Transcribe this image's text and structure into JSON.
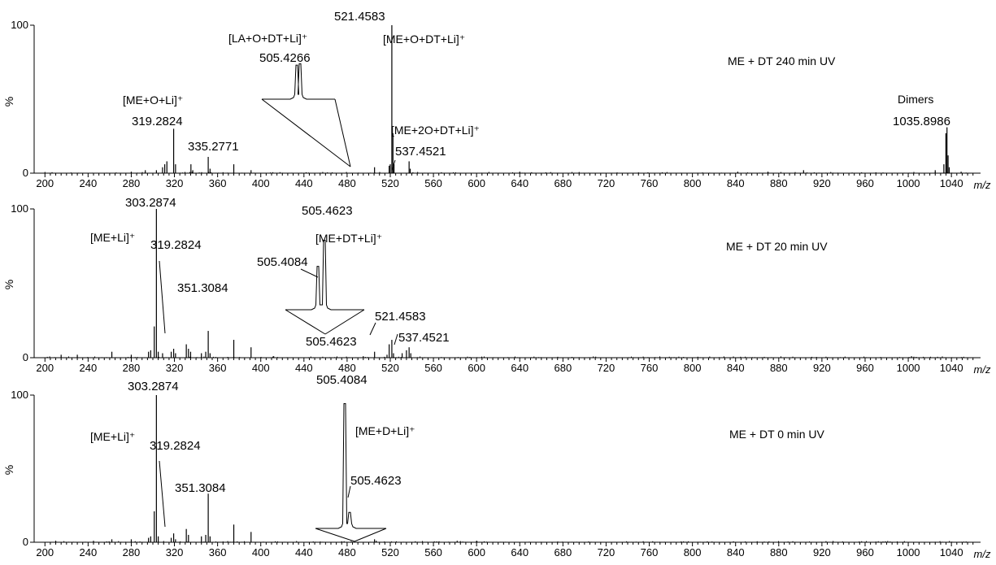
{
  "chart_data": [
    {
      "type": "line",
      "title": "ME + DT 240 min UV",
      "xlabel": "m/z",
      "ylabel": "%",
      "xlim": [
        190,
        1067
      ],
      "ylim": [
        0,
        100
      ],
      "x_ticks": [
        "200",
        "240",
        "280",
        "320",
        "360",
        "400",
        "440",
        "480",
        "520",
        "560",
        "600",
        "640",
        "680",
        "720",
        "760",
        "800",
        "840",
        "880",
        "920",
        "960",
        "1000",
        "1040"
      ],
      "y_ticks": [
        "0",
        "100"
      ],
      "peaks": [
        {
          "mz": 280,
          "intensity": 1
        },
        {
          "mz": 293,
          "intensity": 2
        },
        {
          "mz": 303.3,
          "intensity": 2
        },
        {
          "mz": 309,
          "intensity": 4
        },
        {
          "mz": 311,
          "intensity": 6
        },
        {
          "mz": 313,
          "intensity": 8
        },
        {
          "mz": 319.28,
          "intensity": 30
        },
        {
          "mz": 321,
          "intensity": 6
        },
        {
          "mz": 335.28,
          "intensity": 6
        },
        {
          "mz": 337,
          "intensity": 2
        },
        {
          "mz": 351.3,
          "intensity": 11
        },
        {
          "mz": 353,
          "intensity": 3
        },
        {
          "mz": 375,
          "intensity": 6
        },
        {
          "mz": 391,
          "intensity": 2
        },
        {
          "mz": 505.43,
          "intensity": 4
        },
        {
          "mz": 519,
          "intensity": 5
        },
        {
          "mz": 520,
          "intensity": 6
        },
        {
          "mz": 521.46,
          "intensity": 100
        },
        {
          "mz": 522.5,
          "intensity": 27
        },
        {
          "mz": 523.5,
          "intensity": 6
        },
        {
          "mz": 537.45,
          "intensity": 8
        },
        {
          "mz": 538.5,
          "intensity": 3
        },
        {
          "mz": 640,
          "intensity": 1
        },
        {
          "mz": 842,
          "intensity": 1
        },
        {
          "mz": 870,
          "intensity": 1
        },
        {
          "mz": 903,
          "intensity": 2
        },
        {
          "mz": 1025,
          "intensity": 2
        },
        {
          "mz": 1033,
          "intensity": 6
        },
        {
          "mz": 1034.9,
          "intensity": 27
        },
        {
          "mz": 1035.9,
          "intensity": 31
        },
        {
          "mz": 1036.9,
          "intensity": 12
        },
        {
          "mz": 1038,
          "intensity": 4
        },
        {
          "mz": 1049,
          "intensity": 1
        }
      ],
      "peak_labels": [
        {
          "text": "521.4583",
          "mz": 521.46
        },
        {
          "text": "319.2824",
          "mz": 319.28
        },
        {
          "text": "335.2771",
          "mz": 335.28
        },
        {
          "text": "537.4521",
          "mz": 537.45
        },
        {
          "text": "1035.8986",
          "mz": 1035.9
        }
      ],
      "ion_labels": [
        {
          "text": "[ME+O+Li]⁺"
        },
        {
          "text": "[LA+O+DT+Li]⁺"
        },
        {
          "text": "[ME+O+DT+Li]⁺"
        },
        {
          "text": "[ME+2O+DT+Li]⁺"
        },
        {
          "text": "Dimers"
        }
      ],
      "inset": {
        "label": "505.4266",
        "peaks": [
          {
            "rel": 0.93
          },
          {
            "rel": 0.97
          }
        ]
      }
    },
    {
      "type": "line",
      "title": "ME + DT 20 min UV",
      "xlabel": "m/z",
      "ylabel": "%",
      "xlim": [
        190,
        1067
      ],
      "ylim": [
        0,
        100
      ],
      "x_ticks": [
        "200",
        "240",
        "280",
        "320",
        "360",
        "400",
        "440",
        "480",
        "520",
        "560",
        "600",
        "640",
        "680",
        "720",
        "760",
        "800",
        "840",
        "880",
        "920",
        "960",
        "1000",
        "1040"
      ],
      "y_ticks": [
        "0",
        "100"
      ],
      "peaks": [
        {
          "mz": 215,
          "intensity": 2
        },
        {
          "mz": 230,
          "intensity": 2
        },
        {
          "mz": 262,
          "intensity": 4
        },
        {
          "mz": 280,
          "intensity": 2
        },
        {
          "mz": 296,
          "intensity": 4
        },
        {
          "mz": 298,
          "intensity": 5
        },
        {
          "mz": 301.3,
          "intensity": 21
        },
        {
          "mz": 303.29,
          "intensity": 100
        },
        {
          "mz": 305,
          "intensity": 4
        },
        {
          "mz": 309,
          "intensity": 3
        },
        {
          "mz": 317,
          "intensity": 4
        },
        {
          "mz": 319.28,
          "intensity": 6
        },
        {
          "mz": 321,
          "intensity": 3
        },
        {
          "mz": 331,
          "intensity": 9
        },
        {
          "mz": 333,
          "intensity": 6
        },
        {
          "mz": 335,
          "intensity": 4
        },
        {
          "mz": 345,
          "intensity": 3
        },
        {
          "mz": 349,
          "intensity": 4
        },
        {
          "mz": 351.31,
          "intensity": 18
        },
        {
          "mz": 353,
          "intensity": 3
        },
        {
          "mz": 375,
          "intensity": 12
        },
        {
          "mz": 391,
          "intensity": 7
        },
        {
          "mz": 412,
          "intensity": 1
        },
        {
          "mz": 495,
          "intensity": 1
        },
        {
          "mz": 505.46,
          "intensity": 4
        },
        {
          "mz": 517,
          "intensity": 2
        },
        {
          "mz": 519,
          "intensity": 9
        },
        {
          "mz": 521.46,
          "intensity": 12
        },
        {
          "mz": 523,
          "intensity": 3
        },
        {
          "mz": 531,
          "intensity": 3
        },
        {
          "mz": 535,
          "intensity": 5
        },
        {
          "mz": 537.45,
          "intensity": 7
        },
        {
          "mz": 539,
          "intensity": 3
        },
        {
          "mz": 1003,
          "intensity": 1
        }
      ],
      "peak_labels": [
        {
          "text": "303.2874",
          "mz": 303.29
        },
        {
          "text": "319.2824",
          "mz": 319.28
        },
        {
          "text": "351.3084",
          "mz": 351.31
        },
        {
          "text": "505.4623",
          "mz": 505.46
        },
        {
          "text": "521.4583",
          "mz": 521.46
        },
        {
          "text": "537.4521",
          "mz": 537.45
        }
      ],
      "ion_labels": [
        {
          "text": "[ME+Li]⁺"
        },
        {
          "text": "[ME+DT+Li]⁺"
        }
      ],
      "inset": {
        "labels": [
          "505.4084",
          "505.4623"
        ],
        "peaks": [
          {
            "rel": 0.58
          },
          {
            "rel": 0.93
          }
        ]
      }
    },
    {
      "type": "line",
      "title": "ME + DT  0 min UV",
      "xlabel": "m/z",
      "ylabel": "%",
      "xlim": [
        190,
        1067
      ],
      "ylim": [
        0,
        100
      ],
      "x_ticks": [
        "200",
        "240",
        "280",
        "320",
        "360",
        "400",
        "440",
        "480",
        "520",
        "560",
        "600",
        "640",
        "680",
        "720",
        "760",
        "800",
        "840",
        "880",
        "920",
        "960",
        "1000",
        "1040"
      ],
      "y_ticks": [
        "0",
        "100"
      ],
      "peaks": [
        {
          "mz": 210,
          "intensity": 1
        },
        {
          "mz": 245,
          "intensity": 1
        },
        {
          "mz": 262,
          "intensity": 2
        },
        {
          "mz": 280,
          "intensity": 2
        },
        {
          "mz": 296,
          "intensity": 3
        },
        {
          "mz": 298,
          "intensity": 4
        },
        {
          "mz": 301.3,
          "intensity": 21
        },
        {
          "mz": 303.29,
          "intensity": 100
        },
        {
          "mz": 305,
          "intensity": 4
        },
        {
          "mz": 317,
          "intensity": 3
        },
        {
          "mz": 319.28,
          "intensity": 6
        },
        {
          "mz": 321,
          "intensity": 2
        },
        {
          "mz": 331,
          "intensity": 9
        },
        {
          "mz": 333,
          "intensity": 5
        },
        {
          "mz": 345,
          "intensity": 4
        },
        {
          "mz": 349,
          "intensity": 5
        },
        {
          "mz": 351.31,
          "intensity": 33
        },
        {
          "mz": 353,
          "intensity": 4
        },
        {
          "mz": 375,
          "intensity": 12
        },
        {
          "mz": 391,
          "intensity": 7
        },
        {
          "mz": 505.41,
          "intensity": 2
        },
        {
          "mz": 507,
          "intensity": 1
        },
        {
          "mz": 582,
          "intensity": 1
        },
        {
          "mz": 600,
          "intensity": 1
        }
      ],
      "peak_labels": [
        {
          "text": "303.2874",
          "mz": 303.29
        },
        {
          "text": "319.2824",
          "mz": 319.28
        },
        {
          "text": "351.3084",
          "mz": 351.31
        }
      ],
      "ion_labels": [
        {
          "text": "[ME+Li]⁺"
        },
        {
          "text": "[ME+D+Li]⁺"
        }
      ],
      "inset": {
        "labels": [
          "505.4084",
          "505.4623"
        ],
        "peaks": [
          {
            "rel": 0.93
          },
          {
            "rel": 0.12
          }
        ]
      }
    }
  ]
}
